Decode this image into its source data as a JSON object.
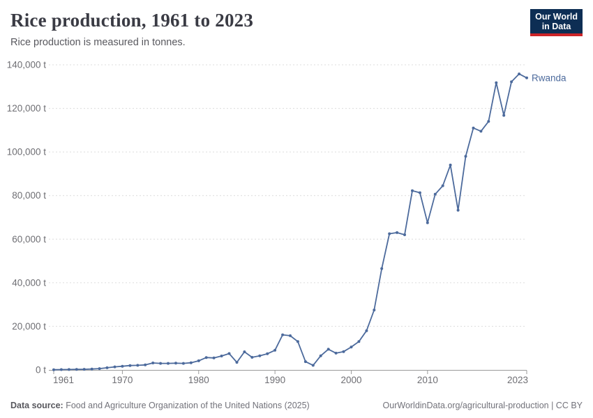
{
  "header": {
    "title": "Rice production, 1961 to 2023",
    "subtitle": "Rice production is measured in tonnes.",
    "logo": {
      "line1": "Our World",
      "line2": "in Data"
    }
  },
  "chart_data": {
    "type": "line",
    "title": "Rice production, 1961 to 2023",
    "unit": "tonnes",
    "xlabel": "",
    "ylabel": "",
    "x_range": [
      1961,
      2023
    ],
    "ylim": [
      0,
      140000
    ],
    "grid": "horizontal-dashed",
    "legend_position": "end-of-line-label",
    "x_ticks": [
      1961,
      1970,
      1980,
      1990,
      2000,
      2010,
      2023
    ],
    "x_tick_labels": [
      "1961",
      "1970",
      "1980",
      "1990",
      "2000",
      "2010",
      "2023"
    ],
    "y_ticks": [
      0,
      20000,
      40000,
      60000,
      80000,
      100000,
      120000,
      140000
    ],
    "y_tick_labels": [
      "0 t",
      "20,000 t",
      "40,000 t",
      "60,000 t",
      "80,000 t",
      "100,000 t",
      "120,000 t",
      "140,000 t"
    ],
    "series": [
      {
        "name": "Rwanda",
        "x": [
          1961,
          1962,
          1963,
          1964,
          1965,
          1966,
          1967,
          1968,
          1969,
          1970,
          1971,
          1972,
          1973,
          1974,
          1975,
          1976,
          1977,
          1978,
          1979,
          1980,
          1981,
          1982,
          1983,
          1984,
          1985,
          1986,
          1987,
          1988,
          1989,
          1990,
          1991,
          1992,
          1993,
          1994,
          1995,
          1996,
          1997,
          1998,
          1999,
          2000,
          2001,
          2002,
          2003,
          2004,
          2005,
          2006,
          2007,
          2008,
          2009,
          2010,
          2011,
          2012,
          2013,
          2014,
          2015,
          2016,
          2017,
          2018,
          2019,
          2020,
          2021,
          2022,
          2023
        ],
        "values": [
          100,
          150,
          200,
          250,
          300,
          400,
          600,
          1000,
          1400,
          1700,
          2000,
          2100,
          2300,
          3200,
          3000,
          3000,
          3100,
          3000,
          3300,
          4200,
          5700,
          5500,
          6400,
          7500,
          3500,
          8300,
          5800,
          6500,
          7400,
          9000,
          16100,
          15700,
          13000,
          3800,
          2100,
          6500,
          9500,
          7700,
          8400,
          10500,
          13000,
          18000,
          27500,
          46500,
          62500,
          63000,
          62000,
          82200,
          81300,
          67500,
          80600,
          84500,
          94000,
          73300,
          98000,
          111000,
          109500,
          114000,
          131800,
          116800,
          132200,
          135800,
          134000
        ]
      }
    ]
  },
  "footer": {
    "source_label": "Data source:",
    "source_text": " Food and Agriculture Organization of the United Nations (2025)",
    "link_text": "OurWorldinData.org/agricultural-production | CC BY"
  },
  "colors": {
    "line": "#4c6a9c",
    "end_label": "#4c6a9c",
    "gridline": "#dcdcdc",
    "axis_line": "#9a9a9a",
    "tick": "#9a9a9a",
    "tick_label": "#6e6e73",
    "logo_bg": "#0d2e54",
    "logo_red": "#cc2428"
  }
}
